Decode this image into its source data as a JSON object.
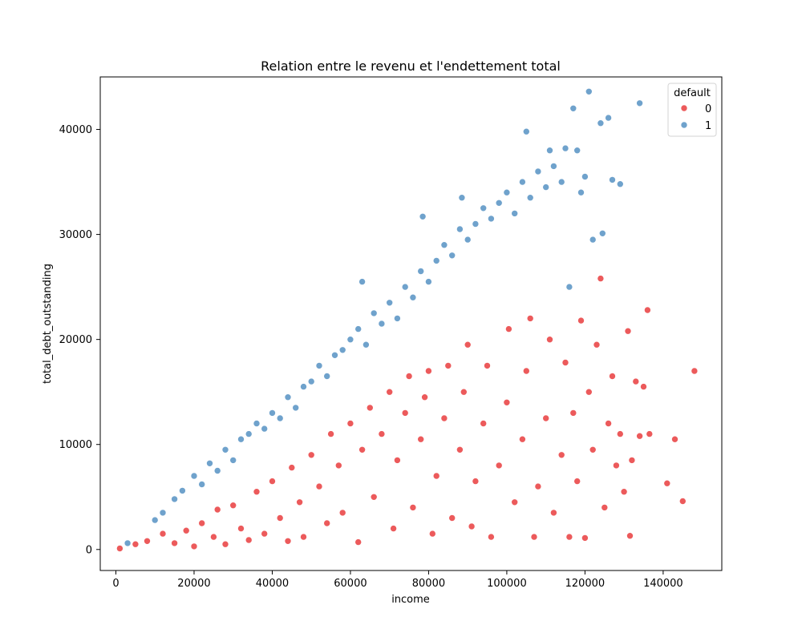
{
  "chart_data": {
    "type": "scatter",
    "title": "Relation entre le revenu et l'endettement total",
    "xlabel": "income",
    "ylabel": "total_debt_outstanding",
    "xlim": [
      -4000,
      155000
    ],
    "ylim": [
      -2000,
      45000
    ],
    "xticks": [
      0,
      20000,
      40000,
      60000,
      80000,
      100000,
      120000,
      140000
    ],
    "xtick_labels": [
      "0",
      "20000",
      "40000",
      "60000",
      "80000",
      "100000",
      "120000",
      "140000"
    ],
    "yticks": [
      0,
      10000,
      20000,
      30000,
      40000
    ],
    "ytick_labels": [
      "0",
      "10000",
      "20000",
      "30000",
      "40000"
    ],
    "grid": false,
    "legend": {
      "title": "default",
      "placement": "top-right"
    },
    "series": [
      {
        "name": "0",
        "color": "#e41a1c",
        "points": [
          [
            1000,
            100
          ],
          [
            5000,
            500
          ],
          [
            8000,
            800
          ],
          [
            12000,
            1500
          ],
          [
            15000,
            600
          ],
          [
            18000,
            1800
          ],
          [
            20000,
            300
          ],
          [
            22000,
            2500
          ],
          [
            25000,
            1200
          ],
          [
            26000,
            3800
          ],
          [
            28000,
            500
          ],
          [
            30000,
            4200
          ],
          [
            32000,
            2000
          ],
          [
            34000,
            900
          ],
          [
            36000,
            5500
          ],
          [
            38000,
            1500
          ],
          [
            40000,
            6500
          ],
          [
            42000,
            3000
          ],
          [
            44000,
            800
          ],
          [
            45000,
            7800
          ],
          [
            47000,
            4500
          ],
          [
            48000,
            1200
          ],
          [
            50000,
            9000
          ],
          [
            52000,
            6000
          ],
          [
            54000,
            2500
          ],
          [
            55000,
            11000
          ],
          [
            57000,
            8000
          ],
          [
            58000,
            3500
          ],
          [
            60000,
            12000
          ],
          [
            62000,
            700
          ],
          [
            63000,
            9500
          ],
          [
            65000,
            13500
          ],
          [
            66000,
            5000
          ],
          [
            68000,
            11000
          ],
          [
            70000,
            15000
          ],
          [
            71000,
            2000
          ],
          [
            72000,
            8500
          ],
          [
            74000,
            13000
          ],
          [
            75000,
            16500
          ],
          [
            76000,
            4000
          ],
          [
            78000,
            10500
          ],
          [
            79000,
            14500
          ],
          [
            80000,
            17000
          ],
          [
            81000,
            1500
          ],
          [
            82000,
            7000
          ],
          [
            84000,
            12500
          ],
          [
            85000,
            17500
          ],
          [
            86000,
            3000
          ],
          [
            88000,
            9500
          ],
          [
            89000,
            15000
          ],
          [
            90000,
            19500
          ],
          [
            91000,
            2200
          ],
          [
            92000,
            6500
          ],
          [
            94000,
            12000
          ],
          [
            95000,
            17500
          ],
          [
            96000,
            1200
          ],
          [
            98000,
            8000
          ],
          [
            100000,
            14000
          ],
          [
            100500,
            21000
          ],
          [
            102000,
            4500
          ],
          [
            104000,
            10500
          ],
          [
            105000,
            17000
          ],
          [
            106000,
            22000
          ],
          [
            107000,
            1200
          ],
          [
            108000,
            6000
          ],
          [
            110000,
            12500
          ],
          [
            111000,
            20000
          ],
          [
            112000,
            3500
          ],
          [
            114000,
            9000
          ],
          [
            115000,
            17800
          ],
          [
            116000,
            1200
          ],
          [
            117000,
            13000
          ],
          [
            118000,
            6500
          ],
          [
            119000,
            21800
          ],
          [
            120000,
            1100
          ],
          [
            121000,
            15000
          ],
          [
            122000,
            9500
          ],
          [
            123000,
            19500
          ],
          [
            124000,
            25800
          ],
          [
            125000,
            4000
          ],
          [
            126000,
            12000
          ],
          [
            127000,
            16500
          ],
          [
            128000,
            8000
          ],
          [
            129000,
            11000
          ],
          [
            130000,
            5500
          ],
          [
            131000,
            20800
          ],
          [
            131500,
            1300
          ],
          [
            132000,
            8500
          ],
          [
            133000,
            16000
          ],
          [
            134000,
            10800
          ],
          [
            135000,
            15500
          ],
          [
            136000,
            22800
          ],
          [
            136500,
            11000
          ],
          [
            141000,
            6300
          ],
          [
            143000,
            10500
          ],
          [
            145000,
            4600
          ],
          [
            148000,
            17000
          ]
        ]
      },
      {
        "name": "1",
        "color": "#377eb8",
        "points": [
          [
            3000,
            600
          ],
          [
            10000,
            2800
          ],
          [
            12000,
            3500
          ],
          [
            15000,
            4800
          ],
          [
            17000,
            5600
          ],
          [
            20000,
            7000
          ],
          [
            22000,
            6200
          ],
          [
            24000,
            8200
          ],
          [
            26000,
            7500
          ],
          [
            28000,
            9500
          ],
          [
            30000,
            8500
          ],
          [
            32000,
            10500
          ],
          [
            34000,
            11000
          ],
          [
            36000,
            12000
          ],
          [
            38000,
            11500
          ],
          [
            40000,
            13000
          ],
          [
            42000,
            12500
          ],
          [
            44000,
            14500
          ],
          [
            46000,
            13500
          ],
          [
            48000,
            15500
          ],
          [
            50000,
            16000
          ],
          [
            52000,
            17500
          ],
          [
            54000,
            16500
          ],
          [
            56000,
            18500
          ],
          [
            58000,
            19000
          ],
          [
            60000,
            20000
          ],
          [
            62000,
            21000
          ],
          [
            63000,
            25500
          ],
          [
            64000,
            19500
          ],
          [
            66000,
            22500
          ],
          [
            68000,
            21500
          ],
          [
            70000,
            23500
          ],
          [
            72000,
            22000
          ],
          [
            74000,
            25000
          ],
          [
            76000,
            24000
          ],
          [
            78000,
            26500
          ],
          [
            78500,
            31700
          ],
          [
            80000,
            25500
          ],
          [
            82000,
            27500
          ],
          [
            84000,
            29000
          ],
          [
            86000,
            28000
          ],
          [
            88000,
            30500
          ],
          [
            88500,
            33500
          ],
          [
            90000,
            29500
          ],
          [
            92000,
            31000
          ],
          [
            94000,
            32500
          ],
          [
            96000,
            31500
          ],
          [
            98000,
            33000
          ],
          [
            100000,
            34000
          ],
          [
            102000,
            32000
          ],
          [
            104000,
            35000
          ],
          [
            105000,
            39800
          ],
          [
            106000,
            33500
          ],
          [
            108000,
            36000
          ],
          [
            110000,
            34500
          ],
          [
            111000,
            38000
          ],
          [
            112000,
            36500
          ],
          [
            114000,
            35000
          ],
          [
            115000,
            38200
          ],
          [
            116000,
            25000
          ],
          [
            117000,
            42000
          ],
          [
            118000,
            38000
          ],
          [
            119000,
            34000
          ],
          [
            120000,
            35500
          ],
          [
            121000,
            43600
          ],
          [
            122000,
            29500
          ],
          [
            124000,
            40600
          ],
          [
            124500,
            30100
          ],
          [
            126000,
            41100
          ],
          [
            127000,
            35200
          ],
          [
            129000,
            34800
          ],
          [
            134000,
            42500
          ]
        ]
      }
    ]
  }
}
